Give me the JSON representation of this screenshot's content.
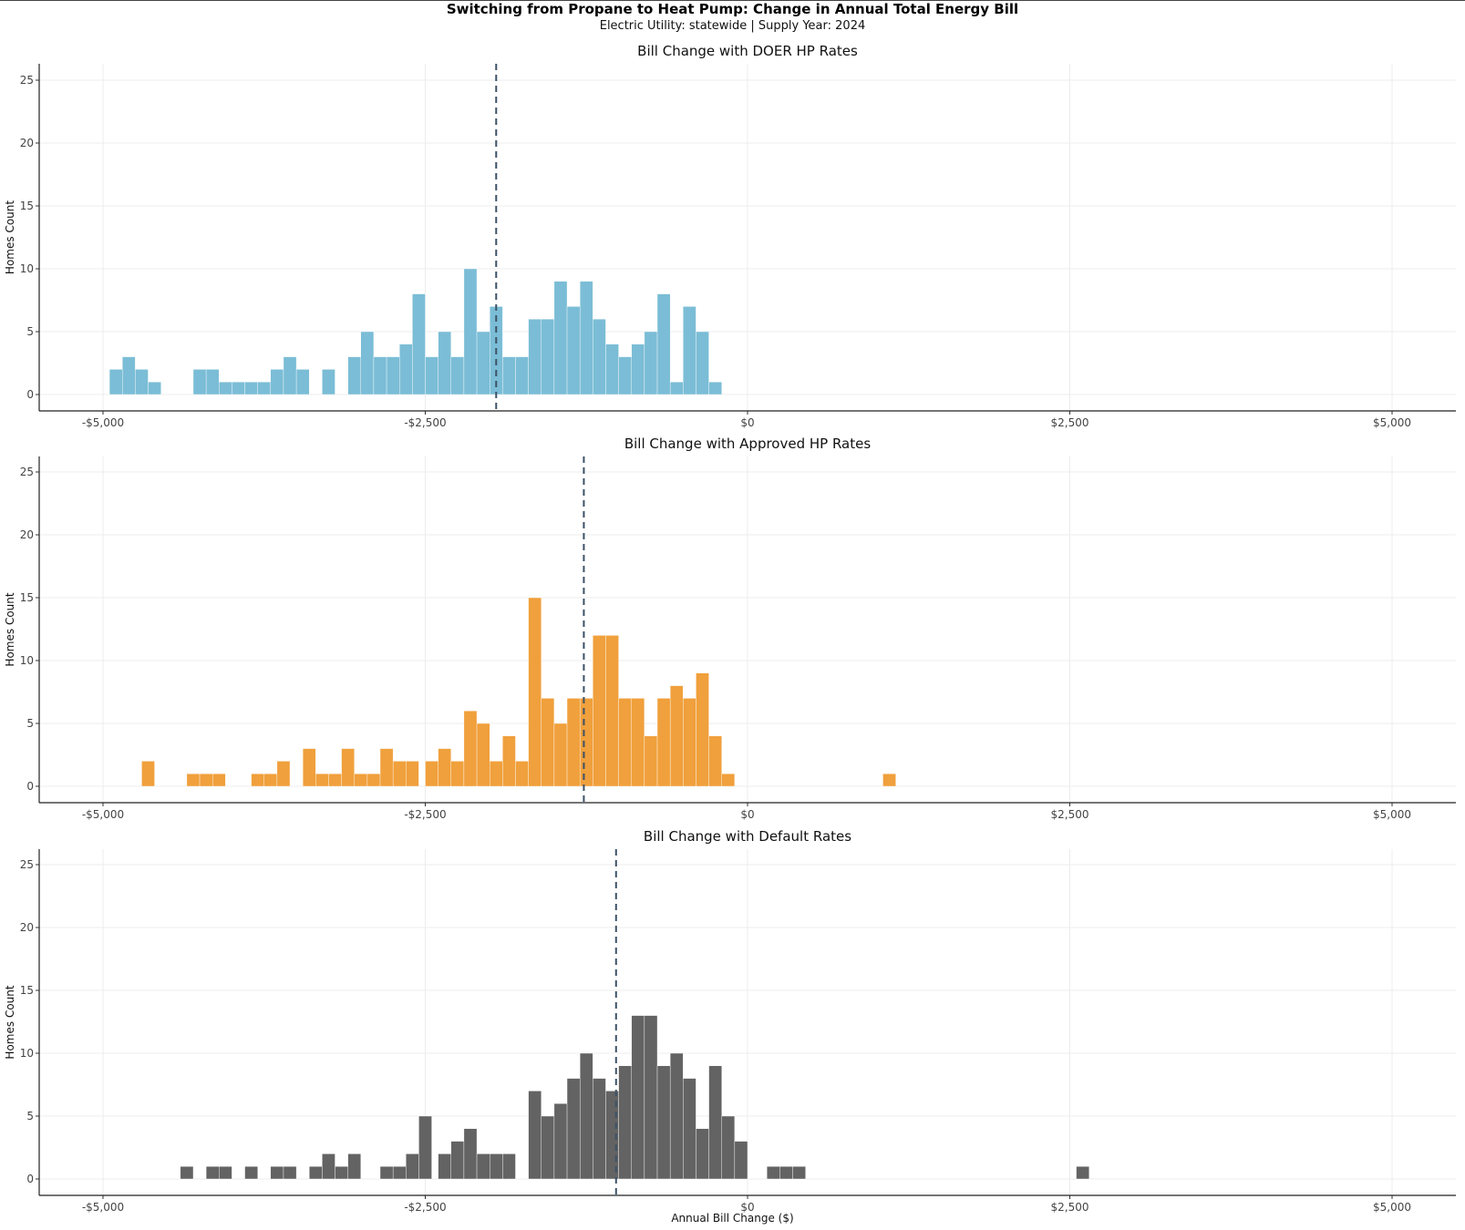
{
  "title": "Switching from Propane to Heat Pump: Change in Annual Total Energy Bill",
  "subtitle": "Electric Utility: statewide | Supply Year: 2024",
  "x_axis_title": "Annual Bill Change ($)",
  "chart_data": [
    {
      "type": "bar",
      "chart_kind": "histogram",
      "title": "Bill Change with DOER HP Rates",
      "ylabel": "Homes Count",
      "xlabel": "Annual Bill Change ($)",
      "color": "#7bbdd6",
      "bin_width": 100,
      "xlim": [
        -5500,
        5500
      ],
      "ylim": [
        0,
        26
      ],
      "xticks": [
        -5000,
        -2500,
        0,
        2500,
        5000
      ],
      "xtick_labels": [
        "-$5,000",
        "-$2,500",
        "$0",
        "$2,500",
        "$5,000"
      ],
      "yticks": [
        0,
        5,
        10,
        15,
        20,
        25
      ],
      "ytick_labels": [
        "0",
        "5",
        "10",
        "15",
        "20",
        "25"
      ],
      "median_line": -1950,
      "bin_starts": [
        -4950,
        -4850,
        -4750,
        -4650,
        -4300,
        -4200,
        -4100,
        -4000,
        -3900,
        -3800,
        -3700,
        -3600,
        -3500,
        -3300,
        -3100,
        -3000,
        -2900,
        -2800,
        -2700,
        -2600,
        -2500,
        -2400,
        -2300,
        -2200,
        -2100,
        -2000,
        -1900,
        -1800,
        -1700,
        -1600,
        -1500,
        -1400,
        -1300,
        -1200,
        -1100,
        -1000,
        -900,
        -800,
        -700,
        -600,
        -500,
        -400,
        -300
      ],
      "values": [
        2,
        3,
        2,
        1,
        2,
        2,
        1,
        1,
        1,
        1,
        2,
        3,
        2,
        2,
        3,
        5,
        3,
        3,
        4,
        8,
        3,
        5,
        3,
        10,
        5,
        7,
        3,
        3,
        6,
        6,
        9,
        7,
        9,
        6,
        4,
        3,
        4,
        5,
        8,
        1,
        7,
        5,
        1
      ]
    },
    {
      "type": "bar",
      "chart_kind": "histogram",
      "title": "Bill Change with Approved HP Rates",
      "ylabel": "Homes Count",
      "xlabel": "Annual Bill Change ($)",
      "color": "#f0a03c",
      "bin_width": 100,
      "xlim": [
        -5500,
        5500
      ],
      "ylim": [
        0,
        26
      ],
      "xticks": [
        -5000,
        -2500,
        0,
        2500,
        5000
      ],
      "xtick_labels": [
        "-$5,000",
        "-$2,500",
        "$0",
        "$2,500",
        "$5,000"
      ],
      "yticks": [
        0,
        5,
        10,
        15,
        20,
        25
      ],
      "ytick_labels": [
        "0",
        "5",
        "10",
        "15",
        "20",
        "25"
      ],
      "median_line": -1270,
      "bin_starts": [
        -4700,
        -4350,
        -4250,
        -4150,
        -3850,
        -3750,
        -3650,
        -3450,
        -3350,
        -3250,
        -3150,
        -3050,
        -2950,
        -2850,
        -2750,
        -2650,
        -2500,
        -2400,
        -2300,
        -2200,
        -2100,
        -2000,
        -1900,
        -1800,
        -1700,
        -1600,
        -1500,
        -1400,
        -1300,
        -1200,
        -1100,
        -1000,
        -900,
        -800,
        -700,
        -600,
        -500,
        -400,
        -300,
        -200,
        1050
      ],
      "values": [
        2,
        1,
        1,
        1,
        1,
        1,
        2,
        3,
        1,
        1,
        3,
        1,
        1,
        3,
        2,
        2,
        2,
        3,
        2,
        6,
        5,
        2,
        4,
        2,
        15,
        7,
        5,
        7,
        7,
        12,
        12,
        7,
        7,
        4,
        7,
        8,
        7,
        9,
        4,
        1,
        1
      ]
    },
    {
      "type": "bar",
      "chart_kind": "histogram",
      "title": "Bill Change with Default Rates",
      "ylabel": "Homes Count",
      "xlabel": "Annual Bill Change ($)",
      "color": "#636363",
      "bin_width": 100,
      "xlim": [
        -5500,
        5500
      ],
      "ylim": [
        0,
        26
      ],
      "xticks": [
        -5000,
        -2500,
        0,
        2500,
        5000
      ],
      "xtick_labels": [
        "-$5,000",
        "-$2,500",
        "$0",
        "$2,500",
        "$5,000"
      ],
      "yticks": [
        0,
        5,
        10,
        15,
        20,
        25
      ],
      "ytick_labels": [
        "0",
        "5",
        "10",
        "15",
        "20",
        "25"
      ],
      "median_line": -1020,
      "bin_starts": [
        -4400,
        -4200,
        -4100,
        -3900,
        -3700,
        -3600,
        -3400,
        -3300,
        -3200,
        -3100,
        -2850,
        -2750,
        -2650,
        -2550,
        -2400,
        -2300,
        -2200,
        -2100,
        -2000,
        -1900,
        -1700,
        -1600,
        -1500,
        -1400,
        -1300,
        -1200,
        -1100,
        -1000,
        -900,
        -800,
        -700,
        -600,
        -500,
        -400,
        -300,
        -200,
        -100,
        150,
        250,
        350,
        2550
      ],
      "values": [
        1,
        1,
        1,
        1,
        1,
        1,
        1,
        2,
        1,
        2,
        1,
        1,
        2,
        5,
        2,
        3,
        4,
        2,
        2,
        2,
        7,
        5,
        6,
        8,
        10,
        8,
        7,
        9,
        13,
        13,
        9,
        10,
        8,
        4,
        9,
        5,
        3,
        1,
        1,
        1,
        1
      ]
    }
  ]
}
